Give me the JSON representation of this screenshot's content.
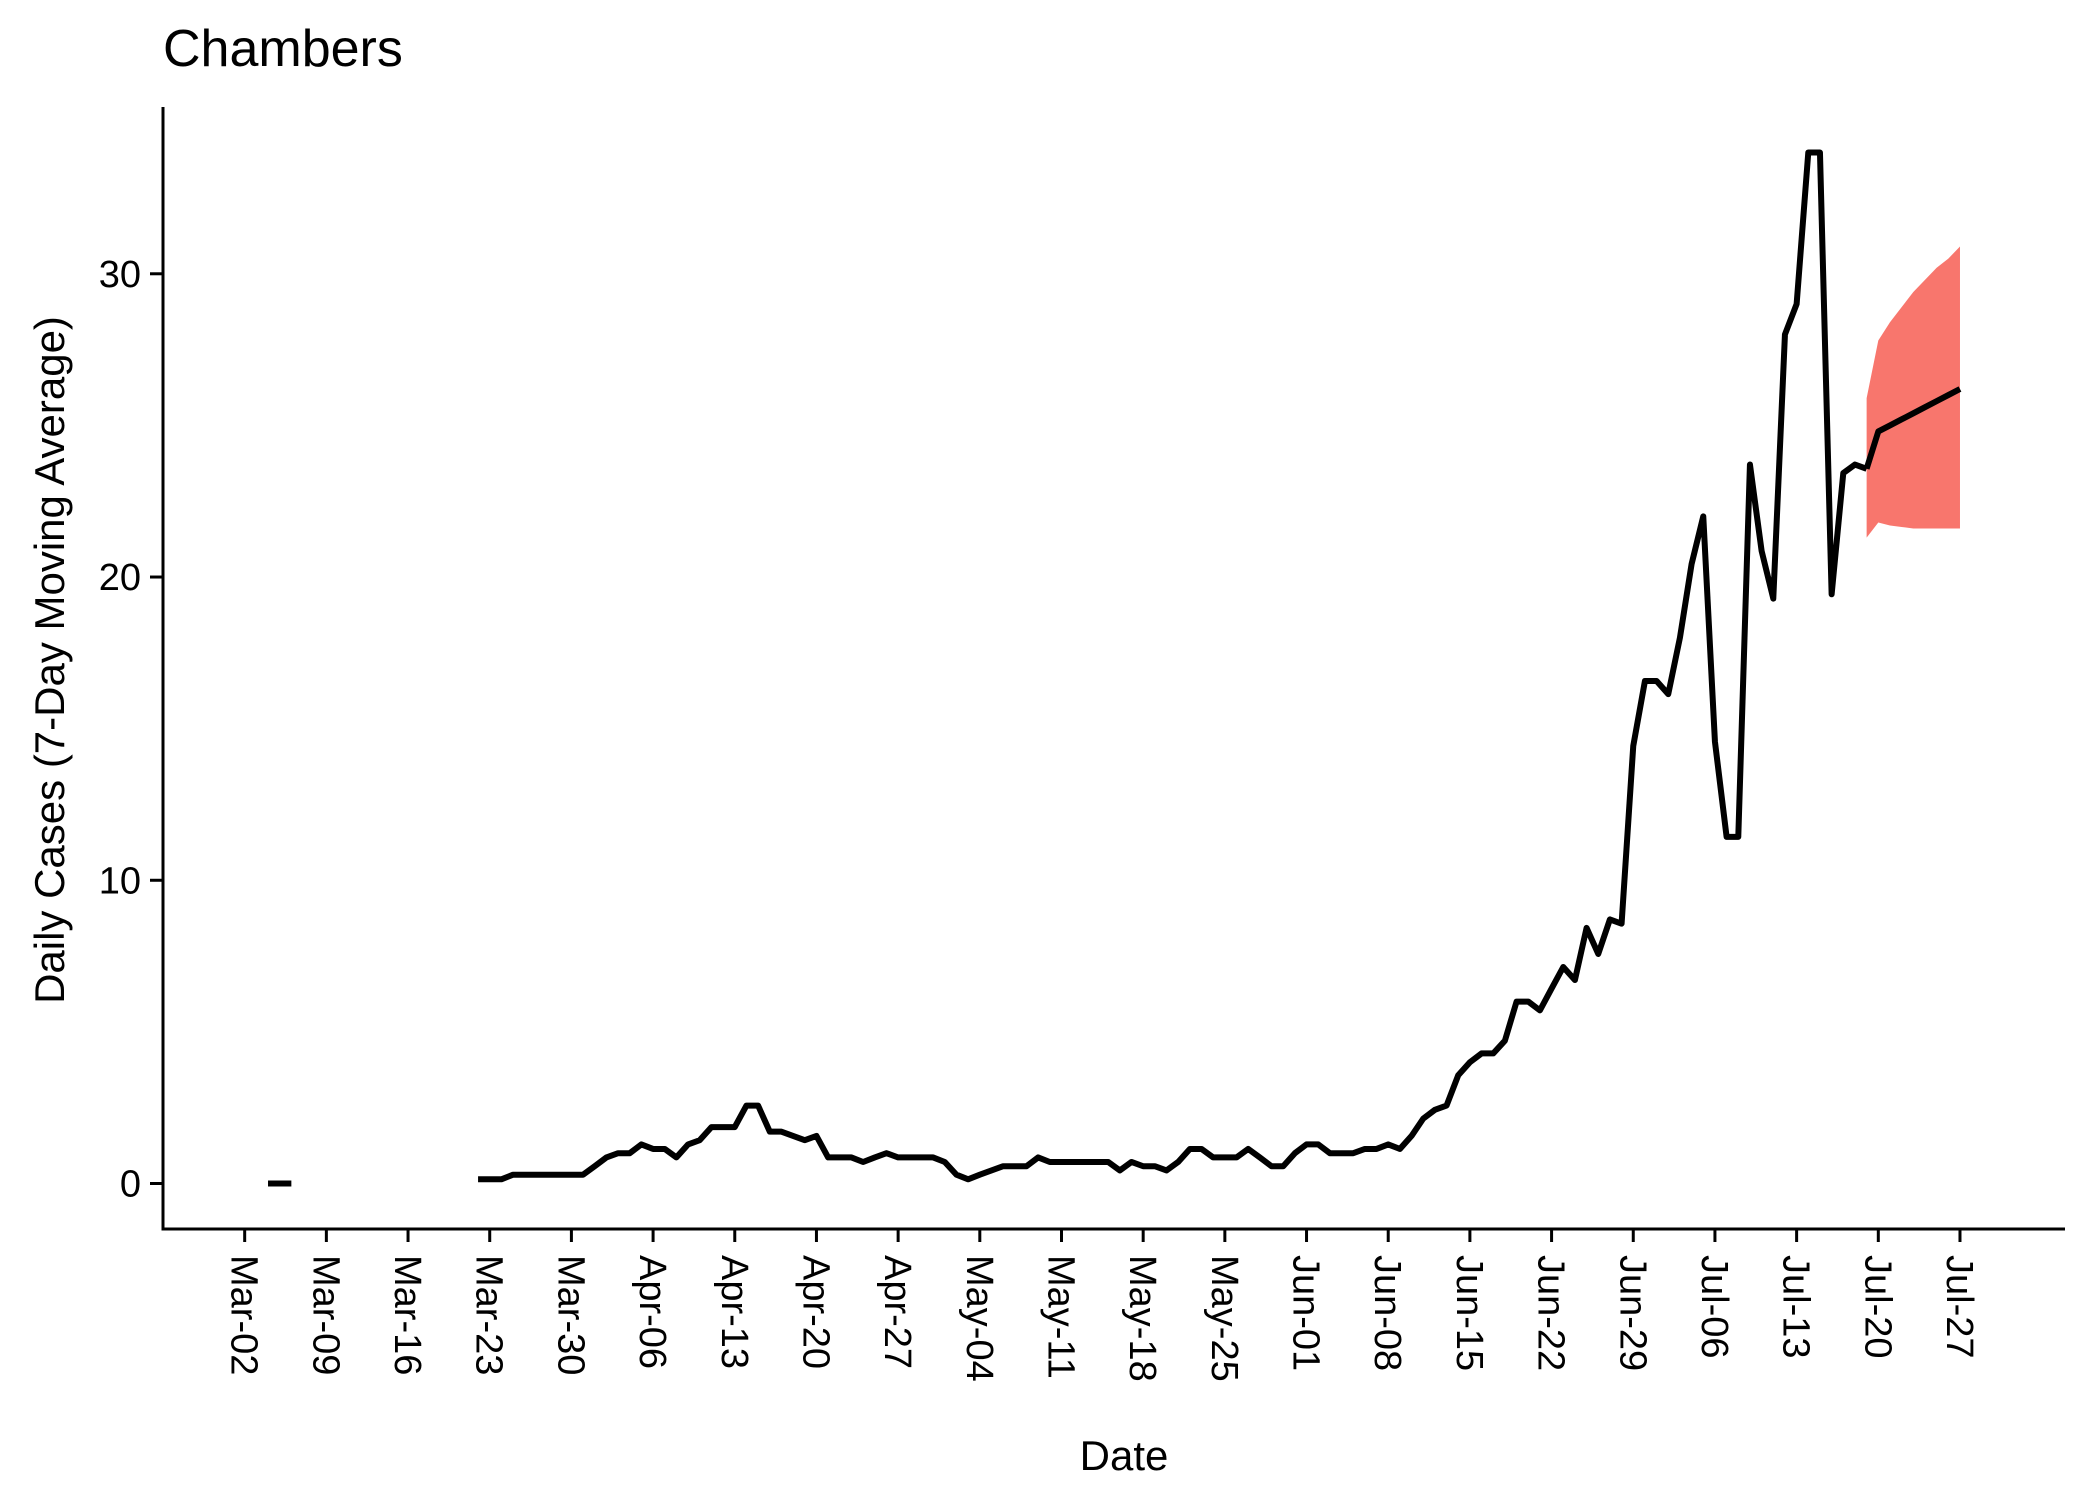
{
  "chart_data": {
    "type": "line",
    "title": "Chambers",
    "xlabel": "Date",
    "ylabel": "Daily Cases (7-Day Moving Average)",
    "ylim": [
      -1.5,
      35.5
    ],
    "yticks": [
      0,
      10,
      20,
      30
    ],
    "x_tick_labels": [
      "Mar-02",
      "Mar-09",
      "Mar-16",
      "Mar-23",
      "Mar-30",
      "Apr-06",
      "Apr-13",
      "Apr-20",
      "Apr-27",
      "May-04",
      "May-11",
      "May-18",
      "May-25",
      "Jun-01",
      "Jun-08",
      "Jun-15",
      "Jun-22",
      "Jun-29",
      "Jul-06",
      "Jul-13",
      "Jul-20",
      "Jul-27"
    ],
    "colors": {
      "line": "#000000",
      "forecast_band": "#F8766D"
    },
    "grid": false,
    "series": [
      {
        "kind": "observed",
        "segments": [
          [
            {
              "x": "2020-03-04",
              "y": 0
            },
            {
              "x": "2020-03-05",
              "y": 0
            },
            {
              "x": "2020-03-06",
              "y": 0
            }
          ],
          [
            {
              "x": "2020-03-22",
              "y": 0.14
            },
            {
              "x": "2020-03-23",
              "y": 0.14
            },
            {
              "x": "2020-03-24",
              "y": 0.14
            },
            {
              "x": "2020-03-25",
              "y": 0.29
            },
            {
              "x": "2020-03-26",
              "y": 0.29
            },
            {
              "x": "2020-03-27",
              "y": 0.29
            },
            {
              "x": "2020-03-28",
              "y": 0.29
            },
            {
              "x": "2020-03-29",
              "y": 0.29
            },
            {
              "x": "2020-03-30",
              "y": 0.29
            },
            {
              "x": "2020-03-31",
              "y": 0.29
            },
            {
              "x": "2020-04-01",
              "y": 0.57
            },
            {
              "x": "2020-04-02",
              "y": 0.86
            },
            {
              "x": "2020-04-03",
              "y": 1.0
            },
            {
              "x": "2020-04-04",
              "y": 1.0
            },
            {
              "x": "2020-04-05",
              "y": 1.29
            },
            {
              "x": "2020-04-06",
              "y": 1.14
            },
            {
              "x": "2020-04-07",
              "y": 1.14
            },
            {
              "x": "2020-04-08",
              "y": 0.86
            },
            {
              "x": "2020-04-09",
              "y": 1.29
            },
            {
              "x": "2020-04-10",
              "y": 1.43
            },
            {
              "x": "2020-04-11",
              "y": 1.86
            },
            {
              "x": "2020-04-12",
              "y": 1.86
            },
            {
              "x": "2020-04-13",
              "y": 1.86
            },
            {
              "x": "2020-04-14",
              "y": 2.57
            },
            {
              "x": "2020-04-15",
              "y": 2.57
            },
            {
              "x": "2020-04-16",
              "y": 1.71
            },
            {
              "x": "2020-04-17",
              "y": 1.71
            },
            {
              "x": "2020-04-18",
              "y": 1.57
            },
            {
              "x": "2020-04-19",
              "y": 1.43
            },
            {
              "x": "2020-04-20",
              "y": 1.57
            },
            {
              "x": "2020-04-21",
              "y": 0.86
            },
            {
              "x": "2020-04-22",
              "y": 0.86
            },
            {
              "x": "2020-04-23",
              "y": 0.86
            },
            {
              "x": "2020-04-24",
              "y": 0.71
            },
            {
              "x": "2020-04-25",
              "y": 0.86
            },
            {
              "x": "2020-04-26",
              "y": 1.0
            },
            {
              "x": "2020-04-27",
              "y": 0.86
            },
            {
              "x": "2020-04-28",
              "y": 0.86
            },
            {
              "x": "2020-04-29",
              "y": 0.86
            },
            {
              "x": "2020-04-30",
              "y": 0.86
            },
            {
              "x": "2020-05-01",
              "y": 0.71
            },
            {
              "x": "2020-05-02",
              "y": 0.29
            },
            {
              "x": "2020-05-03",
              "y": 0.14
            },
            {
              "x": "2020-05-04",
              "y": 0.29
            },
            {
              "x": "2020-05-05",
              "y": 0.43
            },
            {
              "x": "2020-05-06",
              "y": 0.57
            },
            {
              "x": "2020-05-07",
              "y": 0.57
            },
            {
              "x": "2020-05-08",
              "y": 0.57
            },
            {
              "x": "2020-05-09",
              "y": 0.86
            },
            {
              "x": "2020-05-10",
              "y": 0.71
            },
            {
              "x": "2020-05-11",
              "y": 0.71
            },
            {
              "x": "2020-05-12",
              "y": 0.71
            },
            {
              "x": "2020-05-13",
              "y": 0.71
            },
            {
              "x": "2020-05-14",
              "y": 0.71
            },
            {
              "x": "2020-05-15",
              "y": 0.71
            },
            {
              "x": "2020-05-16",
              "y": 0.43
            },
            {
              "x": "2020-05-17",
              "y": 0.71
            },
            {
              "x": "2020-05-18",
              "y": 0.57
            },
            {
              "x": "2020-05-19",
              "y": 0.57
            },
            {
              "x": "2020-05-20",
              "y": 0.43
            },
            {
              "x": "2020-05-21",
              "y": 0.71
            },
            {
              "x": "2020-05-22",
              "y": 1.14
            },
            {
              "x": "2020-05-23",
              "y": 1.14
            },
            {
              "x": "2020-05-24",
              "y": 0.86
            },
            {
              "x": "2020-05-25",
              "y": 0.86
            },
            {
              "x": "2020-05-26",
              "y": 0.86
            },
            {
              "x": "2020-05-27",
              "y": 1.14
            },
            {
              "x": "2020-05-28",
              "y": 0.86
            },
            {
              "x": "2020-05-29",
              "y": 0.57
            },
            {
              "x": "2020-05-30",
              "y": 0.57
            },
            {
              "x": "2020-05-31",
              "y": 1.0
            },
            {
              "x": "2020-06-01",
              "y": 1.29
            },
            {
              "x": "2020-06-02",
              "y": 1.29
            },
            {
              "x": "2020-06-03",
              "y": 1.0
            },
            {
              "x": "2020-06-04",
              "y": 1.0
            },
            {
              "x": "2020-06-05",
              "y": 1.0
            },
            {
              "x": "2020-06-06",
              "y": 1.14
            },
            {
              "x": "2020-06-07",
              "y": 1.14
            },
            {
              "x": "2020-06-08",
              "y": 1.29
            },
            {
              "x": "2020-06-09",
              "y": 1.14
            },
            {
              "x": "2020-06-10",
              "y": 1.57
            },
            {
              "x": "2020-06-11",
              "y": 2.14
            },
            {
              "x": "2020-06-12",
              "y": 2.43
            },
            {
              "x": "2020-06-13",
              "y": 2.57
            },
            {
              "x": "2020-06-14",
              "y": 3.57
            },
            {
              "x": "2020-06-15",
              "y": 4.0
            },
            {
              "x": "2020-06-16",
              "y": 4.29
            },
            {
              "x": "2020-06-17",
              "y": 4.29
            },
            {
              "x": "2020-06-18",
              "y": 4.71
            },
            {
              "x": "2020-06-19",
              "y": 6.0
            },
            {
              "x": "2020-06-20",
              "y": 6.0
            },
            {
              "x": "2020-06-21",
              "y": 5.71
            },
            {
              "x": "2020-06-22",
              "y": 6.43
            },
            {
              "x": "2020-06-23",
              "y": 7.14
            },
            {
              "x": "2020-06-24",
              "y": 6.71
            },
            {
              "x": "2020-06-25",
              "y": 8.43
            },
            {
              "x": "2020-06-26",
              "y": 7.57
            },
            {
              "x": "2020-06-27",
              "y": 8.71
            },
            {
              "x": "2020-06-28",
              "y": 8.57
            },
            {
              "x": "2020-06-29",
              "y": 14.43
            },
            {
              "x": "2020-06-30",
              "y": 16.57
            },
            {
              "x": "2020-07-01",
              "y": 16.57
            },
            {
              "x": "2020-07-02",
              "y": 16.14
            },
            {
              "x": "2020-07-03",
              "y": 18.0
            },
            {
              "x": "2020-07-04",
              "y": 20.43
            },
            {
              "x": "2020-07-05",
              "y": 22.0
            },
            {
              "x": "2020-07-06",
              "y": 14.57
            },
            {
              "x": "2020-07-07",
              "y": 11.43
            },
            {
              "x": "2020-07-08",
              "y": 11.43
            },
            {
              "x": "2020-07-09",
              "y": 23.71
            },
            {
              "x": "2020-07-10",
              "y": 20.86
            },
            {
              "x": "2020-07-11",
              "y": 19.29
            },
            {
              "x": "2020-07-12",
              "y": 28.0
            },
            {
              "x": "2020-07-13",
              "y": 29.0
            },
            {
              "x": "2020-07-14",
              "y": 34.0
            },
            {
              "x": "2020-07-15",
              "y": 34.0
            },
            {
              "x": "2020-07-16",
              "y": 19.43
            },
            {
              "x": "2020-07-17",
              "y": 23.43
            },
            {
              "x": "2020-07-18",
              "y": 23.71
            },
            {
              "x": "2020-07-19",
              "y": 23.57
            }
          ]
        ]
      },
      {
        "kind": "forecast",
        "points": [
          {
            "x": "2020-07-19",
            "y": 23.57,
            "lower": 21.3,
            "upper": 25.9
          },
          {
            "x": "2020-07-20",
            "y": 24.8,
            "lower": 21.8,
            "upper": 27.8
          },
          {
            "x": "2020-07-21",
            "y": 25.0,
            "lower": 21.7,
            "upper": 28.4
          },
          {
            "x": "2020-07-22",
            "y": 25.2,
            "lower": 21.65,
            "upper": 28.9
          },
          {
            "x": "2020-07-23",
            "y": 25.4,
            "lower": 21.6,
            "upper": 29.4
          },
          {
            "x": "2020-07-24",
            "y": 25.6,
            "lower": 21.6,
            "upper": 29.8
          },
          {
            "x": "2020-07-25",
            "y": 25.8,
            "lower": 21.6,
            "upper": 30.2
          },
          {
            "x": "2020-07-26",
            "y": 26.0,
            "lower": 21.6,
            "upper": 30.5
          },
          {
            "x": "2020-07-27",
            "y": 26.2,
            "lower": 21.6,
            "upper": 30.9
          }
        ]
      }
    ]
  }
}
